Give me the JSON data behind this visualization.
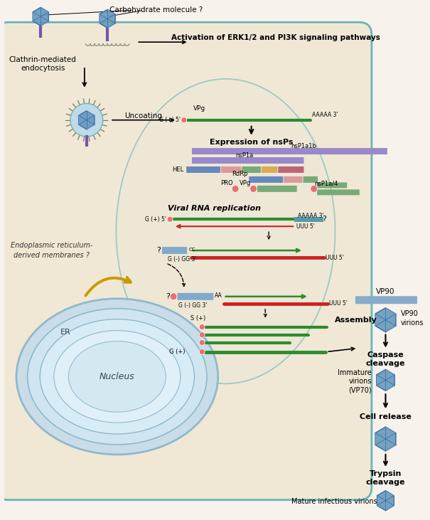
{
  "bg_outer": "#f7f2eb",
  "bg_cell": "#f0e8d5",
  "cell_border": "#6ab5b5",
  "nucleus_border": "#90b8cc",
  "green_rna": "#2e8b2e",
  "red_rna": "#cc2222",
  "blue_bar1": "#7799bb",
  "blue_bar2": "#5577aa",
  "pink_bar": "#dd8888",
  "green_bar": "#77aa77",
  "orange_bar": "#ddaa55",
  "teal_bar": "#55aaaa",
  "purple_bar": "#9988cc",
  "salmon_bar": "#cc7777",
  "vpg_circle": "#e87070",
  "virus_fill": "#6699bb",
  "virus_edge": "#3366aa",
  "virus_light": "#99ccdd",
  "purple_stem": "#7755aa",
  "yellow_arrow": "#cc9900",
  "label_carbohydrate": "Carbohydrate molecule ?",
  "label_activation": "Activation of ERK1/2 and PI3K signaling pathways",
  "label_clathrin": "Clathrin-mediated\nendocytosis",
  "label_uncoating": "Uncoating",
  "label_vpg": "VPg",
  "label_expression": "Expression of nsPs",
  "label_nsp1a1b": "nsP1a1b",
  "label_nsp1a": "nsP1a",
  "label_hel": "HEL",
  "label_rdrp": "RdRp",
  "label_pro": "PRO",
  "label_vpg2": "VPg",
  "label_nsp1a4": "nsP1a/4",
  "label_viral_rep": "Viral RNA replication",
  "label_er_mem": "Endoplasmic reticulum-\nderived membranes ?",
  "label_er": "ER",
  "label_nucleus": "Nucleus",
  "label_vp90": "VP90",
  "label_assembly": "Assembly",
  "label_vp90_virions": "VP90\nvirions",
  "label_caspase": "Caspase\ncleavage",
  "label_immature": "Immature\nvirions\n(VP70)",
  "label_cell_release": "Cell release",
  "label_trypsin": "Trypsin\ncleavage",
  "label_mature": "Mature infectious virions"
}
